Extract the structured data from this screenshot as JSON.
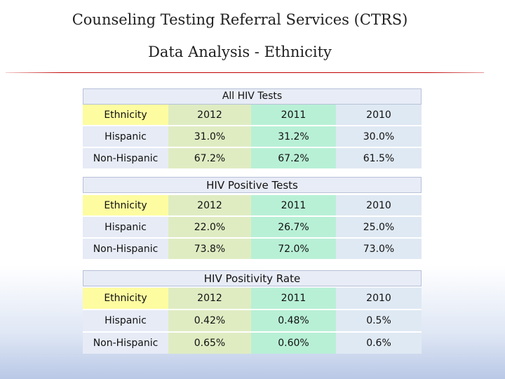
{
  "slide": {
    "title_line1": "Counseling Testing Referral Services (CTRS)",
    "title_line2": "Data Analysis - Ethnicity"
  },
  "tables": [
    {
      "caption": "All HIV Tests",
      "header": [
        "Ethnicity",
        "2012",
        "2011",
        "2010"
      ],
      "rows": [
        [
          "Hispanic",
          "31.0%",
          "31.2%",
          "30.0%"
        ],
        [
          "Non-Hispanic",
          "67.2%",
          "67.2%",
          "61.5%"
        ]
      ]
    },
    {
      "caption": "HIV Positive Tests",
      "header": [
        "Ethnicity",
        "2012",
        "2011",
        "2010"
      ],
      "rows": [
        [
          "Hispanic",
          "22.0%",
          "26.7%",
          "25.0%"
        ],
        [
          "Non-Hispanic",
          "73.8%",
          "72.0%",
          "73.0%"
        ]
      ]
    },
    {
      "caption": "HIV Positivity Rate",
      "header": [
        "Ethnicity",
        "2012",
        "2011",
        "2010"
      ],
      "rows": [
        [
          "Hispanic",
          "0.42%",
          "0.48%",
          "0.5%"
        ],
        [
          "Non-Hispanic",
          "0.65%",
          "0.60%",
          "0.6%"
        ]
      ]
    }
  ],
  "colors": {
    "header_row": "#fdfca0",
    "ethnicity_col": "#e6ebf6",
    "col_2012": "#dfecc2",
    "col_2011": "#b8f0d6",
    "col_2010": "#dfe9f3",
    "title_rule": "#c00000"
  }
}
